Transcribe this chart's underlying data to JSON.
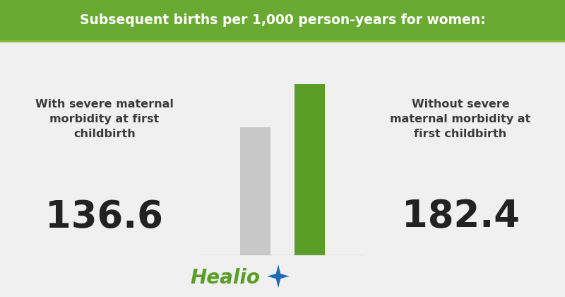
{
  "title": "Subsequent births per 1,000 person-years for women:",
  "title_bg_color": "#6aaa32",
  "title_text_color": "#ffffff",
  "bg_color": "#f0f0f0",
  "bar_values": [
    136.6,
    182.4
  ],
  "bar_colors": [
    "#c8c8c8",
    "#5a9e28"
  ],
  "bar_labels": [
    "136.6",
    "182.4"
  ],
  "left_label": "With severe maternal\nmorbidity at first\nchildbirth",
  "right_label": "Without severe\nmaternal morbidity at\nfirst childbirth",
  "healio_text": "Healio",
  "healio_color": "#5a9e28",
  "star_color": "#1e6cb5",
  "label_color": "#3a3a3a",
  "value_color": "#222222",
  "title_bar_bottom": 0.865,
  "title_fontsize": 13.5,
  "label_fontsize": 11.5,
  "value_fontsize": 38,
  "healio_fontsize": 20
}
